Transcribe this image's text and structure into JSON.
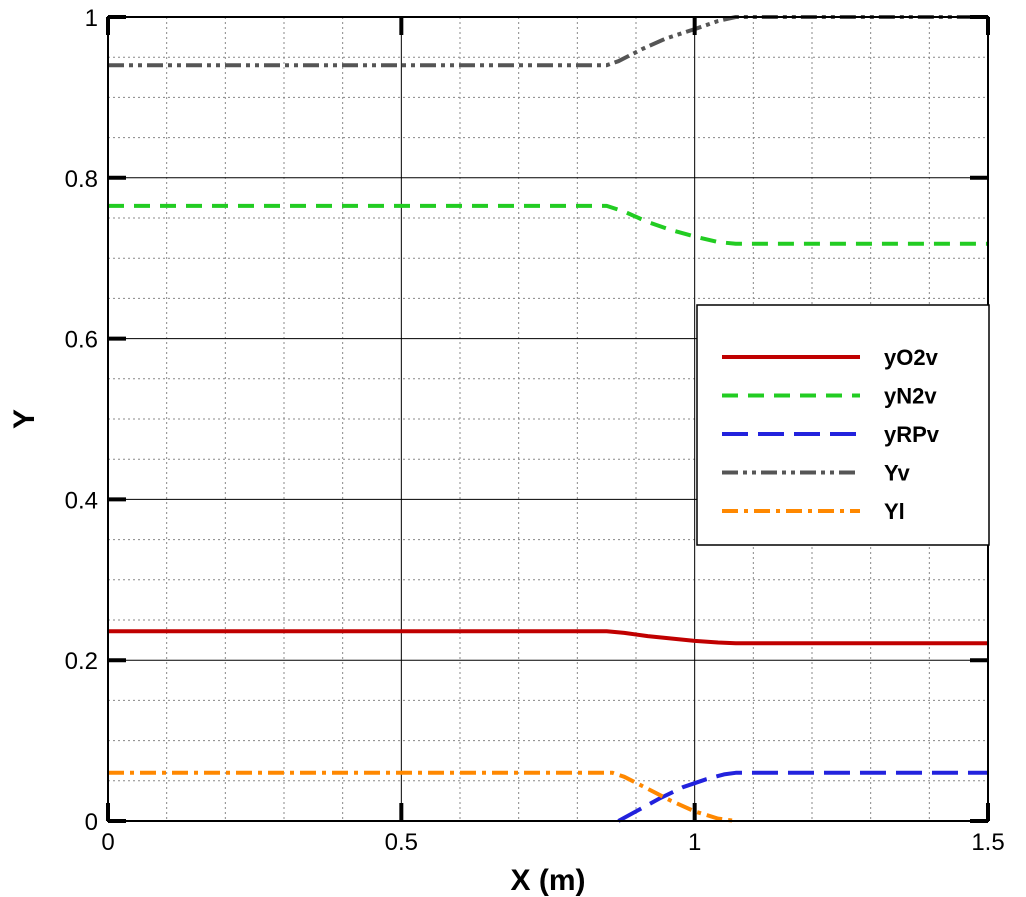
{
  "chart_data": {
    "type": "line",
    "xlabel": "X (m)",
    "ylabel": "Y",
    "xlim": [
      0,
      1.5
    ],
    "ylim": [
      0,
      1
    ],
    "x_ticks": [
      0,
      0.5,
      1,
      1.5
    ],
    "x_tick_labels": [
      "0",
      "0.5",
      "1",
      "1.5"
    ],
    "y_ticks": [
      0,
      0.2,
      0.4,
      0.6,
      0.8,
      1
    ],
    "y_tick_labels": [
      "0",
      "0.2",
      "0.4",
      "0.6",
      "0.8",
      "1"
    ],
    "grid": true,
    "legend_position": "right",
    "series": [
      {
        "name": "yO2v",
        "color": "#c00000",
        "dash": "solid",
        "points": [
          [
            0,
            0.236
          ],
          [
            0.85,
            0.236
          ],
          [
            0.88,
            0.234
          ],
          [
            0.92,
            0.23
          ],
          [
            0.96,
            0.227
          ],
          [
            1.0,
            0.224
          ],
          [
            1.04,
            0.222
          ],
          [
            1.07,
            0.221
          ],
          [
            1.5,
            0.221
          ]
        ]
      },
      {
        "name": "yN2v",
        "color": "#22cc22",
        "dash": "dashed",
        "points": [
          [
            0,
            0.765
          ],
          [
            0.85,
            0.765
          ],
          [
            0.88,
            0.758
          ],
          [
            0.92,
            0.745
          ],
          [
            0.96,
            0.735
          ],
          [
            1.0,
            0.727
          ],
          [
            1.04,
            0.72
          ],
          [
            1.07,
            0.718
          ],
          [
            1.5,
            0.718
          ]
        ]
      },
      {
        "name": "yRPv",
        "color": "#2222dd",
        "dash": "long-dash",
        "points": [
          [
            0.87,
            0.0
          ],
          [
            0.9,
            0.012
          ],
          [
            0.94,
            0.028
          ],
          [
            0.98,
            0.042
          ],
          [
            1.02,
            0.052
          ],
          [
            1.05,
            0.058
          ],
          [
            1.07,
            0.06
          ],
          [
            1.5,
            0.06
          ]
        ]
      },
      {
        "name": "Yv",
        "color": "#555555",
        "dash": "dash-dot-dot",
        "points": [
          [
            0,
            0.94
          ],
          [
            0.85,
            0.94
          ],
          [
            0.87,
            0.945
          ],
          [
            0.91,
            0.96
          ],
          [
            0.95,
            0.973
          ],
          [
            1.0,
            0.985
          ],
          [
            1.04,
            0.995
          ],
          [
            1.07,
            1.0
          ],
          [
            1.5,
            1.0
          ]
        ]
      },
      {
        "name": "Yl",
        "color": "#ff8800",
        "dash": "dash-dot",
        "points": [
          [
            0,
            0.06
          ],
          [
            0.86,
            0.06
          ],
          [
            0.88,
            0.055
          ],
          [
            0.92,
            0.04
          ],
          [
            0.96,
            0.025
          ],
          [
            1.0,
            0.012
          ],
          [
            1.04,
            0.003
          ],
          [
            1.07,
            0.0
          ]
        ]
      }
    ]
  }
}
